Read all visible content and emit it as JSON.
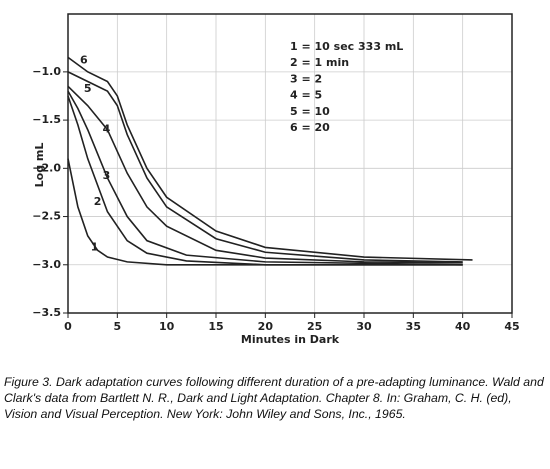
{
  "chart_data": {
    "type": "line",
    "y_label": "Log mL",
    "x_label": "Minutes in Dark",
    "legend": [
      "1 = 10 sec 333 mL",
      "2 = 1 min",
      "3 = 2",
      "4 = 5",
      "5 = 10",
      "6 = 20"
    ],
    "xlim": [
      0,
      45
    ],
    "xticks": [
      0,
      5,
      10,
      15,
      20,
      25,
      30,
      35,
      40,
      45
    ],
    "ylim": [
      -3.5,
      -0.4
    ],
    "yticks": [
      {
        "value": -1.0,
        "label": "−1.0"
      },
      {
        "value": -1.5,
        "label": "−1.5"
      },
      {
        "value": -2.0,
        "label": "−2.0"
      },
      {
        "value": -2.5,
        "label": "−2.5"
      },
      {
        "value": -3.0,
        "label": "−3.0"
      },
      {
        "value": -3.5,
        "label": "−3.5"
      }
    ],
    "grid": true,
    "series": [
      {
        "name": "1",
        "color": "#222222",
        "x": [
          0,
          1,
          2,
          3,
          4,
          6,
          10,
          20,
          40
        ],
        "values": [
          -1.9,
          -2.4,
          -2.7,
          -2.85,
          -2.92,
          -2.97,
          -3.0,
          -3.0,
          -3.0
        ]
      },
      {
        "name": "2",
        "color": "#222222",
        "x": [
          0,
          1,
          2,
          4,
          6,
          8,
          12,
          20,
          40
        ],
        "values": [
          -1.25,
          -1.55,
          -1.9,
          -2.45,
          -2.75,
          -2.88,
          -2.96,
          -3.0,
          -3.0
        ]
      },
      {
        "name": "3",
        "color": "#222222",
        "x": [
          0,
          1,
          2,
          4,
          6,
          8,
          12,
          20,
          40
        ],
        "values": [
          -1.2,
          -1.38,
          -1.6,
          -2.1,
          -2.5,
          -2.75,
          -2.9,
          -2.97,
          -3.0
        ]
      },
      {
        "name": "4",
        "color": "#222222",
        "x": [
          0,
          2,
          4,
          6,
          8,
          10,
          15,
          20,
          30,
          40
        ],
        "values": [
          -1.15,
          -1.35,
          -1.6,
          -2.05,
          -2.4,
          -2.6,
          -2.85,
          -2.93,
          -2.97,
          -2.98
        ]
      },
      {
        "name": "5",
        "color": "#222222",
        "x": [
          0,
          2,
          4,
          5,
          6,
          8,
          10,
          15,
          20,
          30,
          40
        ],
        "values": [
          -1.0,
          -1.1,
          -1.2,
          -1.35,
          -1.65,
          -2.1,
          -2.4,
          -2.73,
          -2.87,
          -2.95,
          -2.97
        ]
      },
      {
        "name": "6",
        "color": "#222222",
        "x": [
          0,
          2,
          4,
          5,
          6,
          8,
          10,
          15,
          20,
          30,
          41
        ],
        "values": [
          -0.85,
          -1.0,
          -1.1,
          -1.25,
          -1.55,
          -2.0,
          -2.3,
          -2.65,
          -2.82,
          -2.92,
          -2.95
        ]
      }
    ]
  },
  "caption": "Figure 3. Dark adaptation curves following different duration of a pre-adapting luminance. Wald and Clark's data from Bartlett N. R., Dark and Light Adaptation. Chapter 8. In: Graham, C. H. (ed), Vision and Visual Perception. New York: John Wiley and Sons, Inc., 1965."
}
